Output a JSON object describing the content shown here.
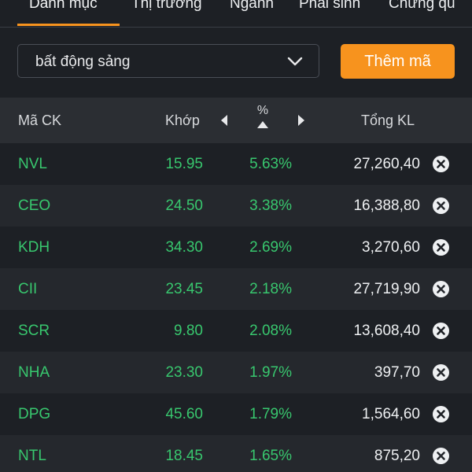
{
  "tabs": [
    {
      "label": "Danh mục",
      "active": true
    },
    {
      "label": "Thị trường",
      "active": false
    },
    {
      "label": "Ngành",
      "active": false
    },
    {
      "label": "Phái sinh",
      "active": false
    },
    {
      "label": "Chứng qu",
      "active": false
    }
  ],
  "watchlist": {
    "selected": "bất động sảng",
    "icon": "chevron-down-icon"
  },
  "add_button_label": "Thêm mã",
  "columns": {
    "symbol": "Mã CK",
    "price": "Khớp",
    "percent": "%",
    "volume": "Tổng KL"
  },
  "colors": {
    "accent": "#f7931e",
    "up": "#38c76e",
    "background": "#1d2025"
  },
  "rows": [
    {
      "symbol": "NVL",
      "price": "15.95",
      "percent": "5.63%",
      "volume": "27,260,40"
    },
    {
      "symbol": "CEO",
      "price": "24.50",
      "percent": "3.38%",
      "volume": "16,388,80"
    },
    {
      "symbol": "KDH",
      "price": "34.30",
      "percent": "2.69%",
      "volume": "3,270,60"
    },
    {
      "symbol": "CII",
      "price": "23.45",
      "percent": "2.18%",
      "volume": "27,719,90"
    },
    {
      "symbol": "SCR",
      "price": "9.80",
      "percent": "2.08%",
      "volume": "13,608,40"
    },
    {
      "symbol": "NHA",
      "price": "23.30",
      "percent": "1.97%",
      "volume": "397,70"
    },
    {
      "symbol": "DPG",
      "price": "45.60",
      "percent": "1.79%",
      "volume": "1,564,60"
    },
    {
      "symbol": "NTL",
      "price": "18.45",
      "percent": "1.65%",
      "volume": "875,20"
    }
  ]
}
